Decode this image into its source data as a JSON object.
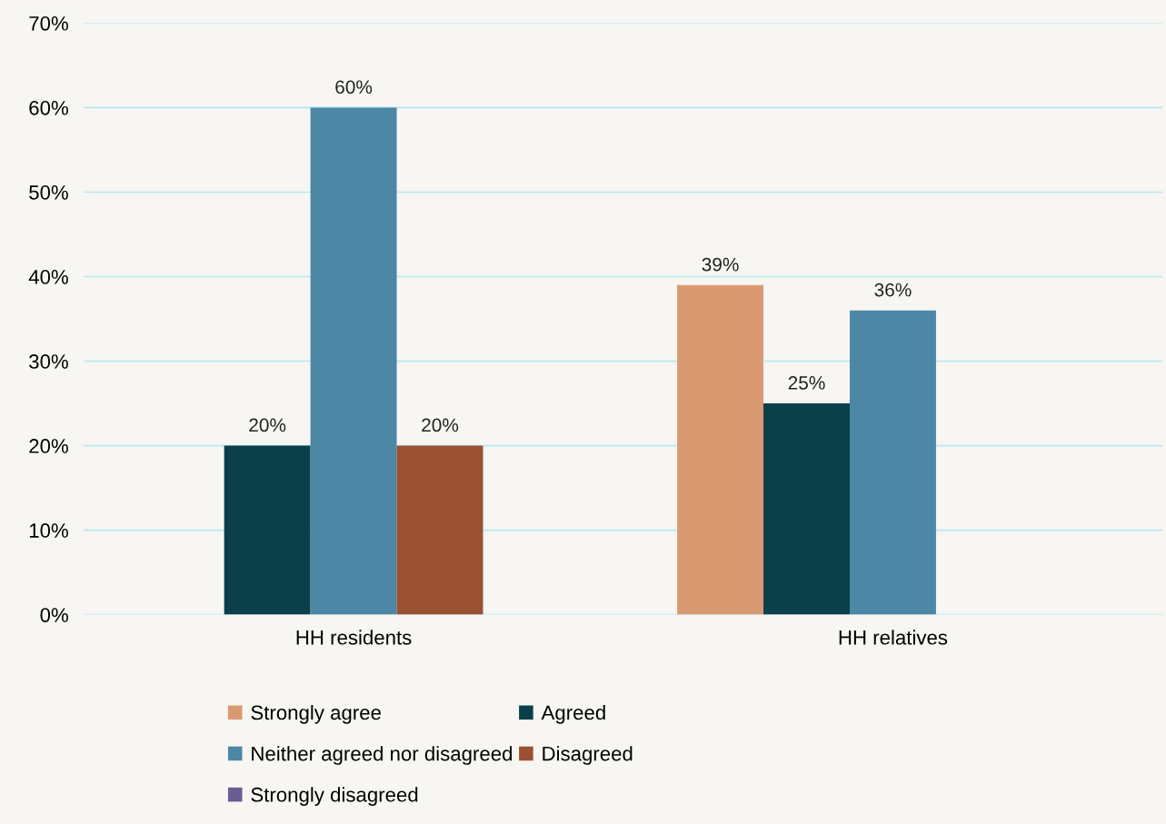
{
  "chart_data": {
    "type": "bar",
    "categories": [
      "HH residents",
      "HH relatives"
    ],
    "series": [
      {
        "name": "Strongly agree",
        "color": "#d99a72",
        "values": [
          null,
          39
        ],
        "value_labels": [
          null,
          "39%"
        ]
      },
      {
        "name": "Agreed",
        "color": "#0b3f4a",
        "values": [
          20,
          25
        ],
        "value_labels": [
          "20%",
          "25%"
        ]
      },
      {
        "name": "Neither agreed nor disagreed",
        "color": "#4c87a6",
        "values": [
          60,
          36
        ],
        "value_labels": [
          "60%",
          "36%"
        ]
      },
      {
        "name": "Disagreed",
        "color": "#9a5033",
        "values": [
          20,
          null
        ],
        "value_labels": [
          "20%",
          null
        ]
      },
      {
        "name": "Strongly disagreed",
        "color": "#6b5b95",
        "values": [
          null,
          null
        ]
      }
    ],
    "ylim": [
      0,
      70
    ],
    "yticks": [
      {
        "value": 0,
        "label": "0%"
      },
      {
        "value": 10,
        "label": "10%"
      },
      {
        "value": 20,
        "label": "20%"
      },
      {
        "value": 30,
        "label": "30%"
      },
      {
        "value": 40,
        "label": "40%"
      },
      {
        "value": 50,
        "label": "50%"
      },
      {
        "value": 60,
        "label": "60%"
      },
      {
        "value": 70,
        "label": "70%"
      }
    ],
    "grid": "y",
    "legend": "bottom"
  }
}
